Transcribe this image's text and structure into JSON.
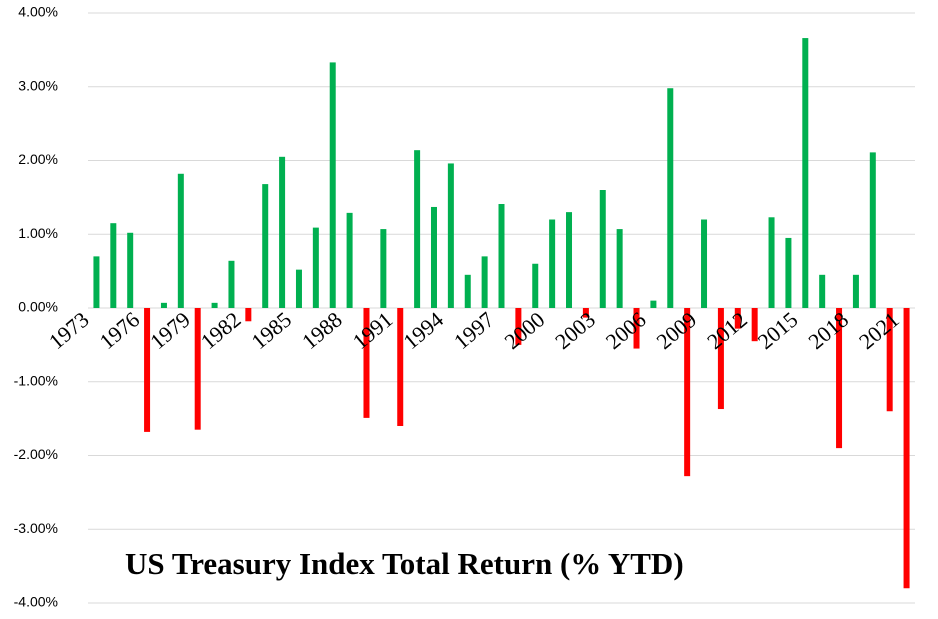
{
  "chart_data": {
    "type": "bar",
    "title": "US Treasury Index Total Return (% YTD)",
    "categories": [
      "1973",
      null,
      null,
      "1976",
      null,
      null,
      "1979",
      null,
      null,
      "1982",
      null,
      null,
      "1985",
      null,
      null,
      "1988",
      null,
      null,
      "1991",
      null,
      null,
      "1994",
      null,
      null,
      "1997",
      null,
      null,
      "2000",
      null,
      null,
      "2003",
      null,
      null,
      "2006",
      null,
      null,
      "2009",
      null,
      null,
      "2012",
      null,
      null,
      "2015",
      null,
      null,
      "2018",
      null,
      null,
      "2021"
    ],
    "values": [
      0.7,
      1.15,
      1.02,
      -1.68,
      0.07,
      1.82,
      -1.65,
      0.07,
      0.64,
      -0.18,
      1.68,
      2.05,
      0.52,
      1.09,
      3.33,
      1.29,
      -1.49,
      1.07,
      -1.6,
      2.14,
      1.37,
      1.96,
      0.45,
      0.7,
      1.41,
      -0.5,
      0.6,
      1.2,
      1.3,
      -0.13,
      1.6,
      1.07,
      -0.55,
      0.1,
      2.98,
      -2.28,
      1.2,
      -1.37,
      -0.28,
      -0.45,
      1.23,
      0.95,
      3.66,
      0.45,
      -1.9,
      0.45,
      2.11,
      -1.4,
      -3.8
    ],
    "positive_color": "#00b050",
    "negative_color": "#ff0000",
    "ylim": [
      -4,
      4
    ],
    "yticks": [
      {
        "value": -4,
        "label": "-4.00%"
      },
      {
        "value": -3,
        "label": "-3.00%"
      },
      {
        "value": -2,
        "label": "-2.00%"
      },
      {
        "value": -1,
        "label": "-1.00%"
      },
      {
        "value": 0,
        "label": "0.00%"
      },
      {
        "value": 1,
        "label": "1.00%"
      },
      {
        "value": 2,
        "label": "2.00%"
      },
      {
        "value": 3,
        "label": "3.00%"
      },
      {
        "value": 4,
        "label": "4.00%"
      }
    ],
    "grid": true
  }
}
